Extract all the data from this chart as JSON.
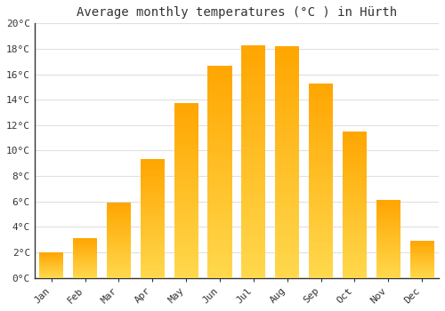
{
  "title": "Average monthly temperatures (°C ) in Hürth",
  "months": [
    "Jan",
    "Feb",
    "Mar",
    "Apr",
    "May",
    "Jun",
    "Jul",
    "Aug",
    "Sep",
    "Oct",
    "Nov",
    "Dec"
  ],
  "values": [
    2.0,
    3.1,
    5.9,
    9.3,
    13.7,
    16.7,
    18.3,
    18.2,
    15.3,
    11.5,
    6.1,
    2.9
  ],
  "bar_color_bottom": "#FFD84D",
  "bar_color_top": "#FFA500",
  "ylim": [
    0,
    20
  ],
  "yticks": [
    0,
    2,
    4,
    6,
    8,
    10,
    12,
    14,
    16,
    18,
    20
  ],
  "ytick_labels": [
    "0°C",
    "2°C",
    "4°C",
    "6°C",
    "8°C",
    "10°C",
    "12°C",
    "14°C",
    "16°C",
    "18°C",
    "20°C"
  ],
  "background_color": "#FFFFFF",
  "grid_color": "#E0E0E0",
  "title_fontsize": 10,
  "tick_fontsize": 8,
  "font_family": "monospace"
}
